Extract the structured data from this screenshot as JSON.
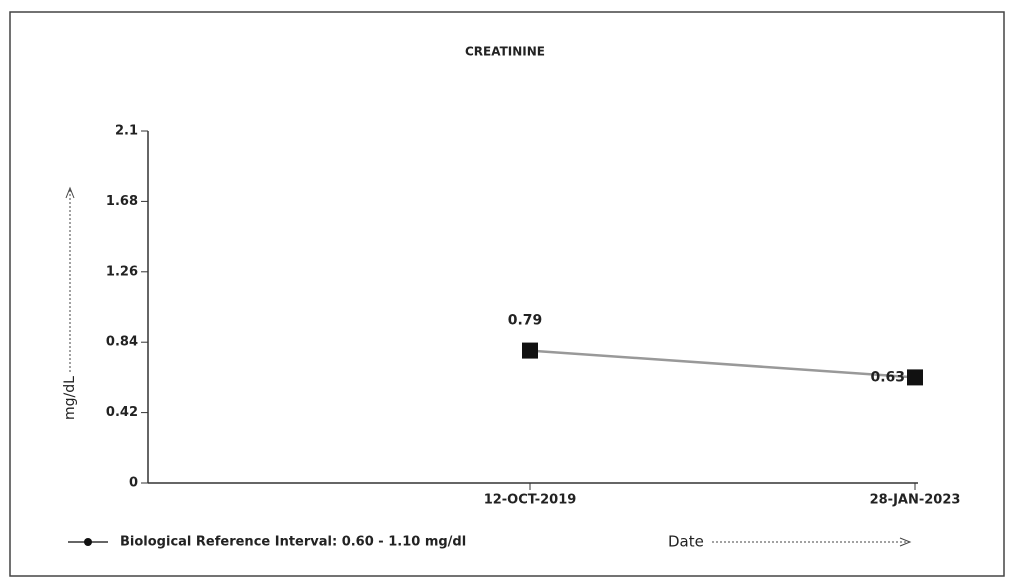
{
  "chart_data": {
    "type": "line",
    "title": "CREATININE",
    "y_label": "mg/dL",
    "x_label": "Date",
    "categories": [
      "12-OCT-2019",
      "28-JAN-2023"
    ],
    "series": [
      {
        "name": "Biological Reference Interval: 0.60 - 1.10 mg/dl",
        "color": "#999999",
        "marker_color": "#111111",
        "values": [
          0.79,
          0.63
        ]
      }
    ],
    "ylim": [
      0,
      2.1
    ],
    "yticks": [
      0,
      0.42,
      0.84,
      1.26,
      1.68,
      2.1
    ],
    "grid": false
  }
}
